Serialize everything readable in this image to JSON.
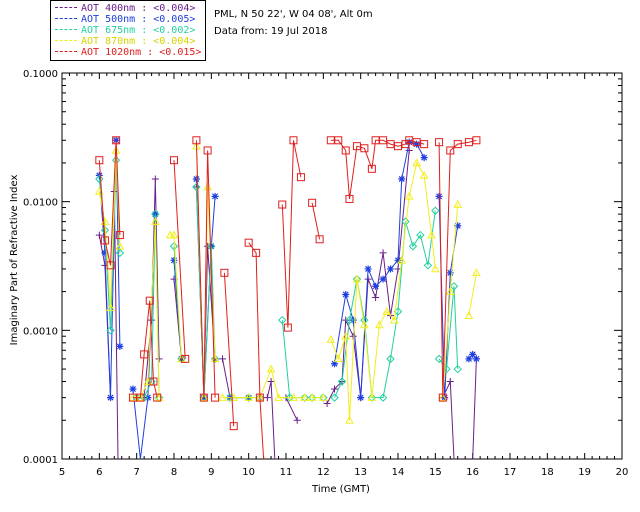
{
  "header": {
    "site_line": "PML, N 50 22', W 04 08', Alt 0m",
    "date_line": "Data from: 19 Jul 2018"
  },
  "chart_data": {
    "type": "line",
    "title": "",
    "xlabel": "Time (GMT)",
    "ylabel": "Imaginary Part of Refractive Index",
    "xlim": [
      5,
      20
    ],
    "ylim": [
      0.0001,
      0.1
    ],
    "yscale": "log",
    "grid": false,
    "legend_position": "top-left",
    "x_ticks": [
      "5",
      "6",
      "7",
      "8",
      "9",
      "10",
      "11",
      "12",
      "13",
      "14",
      "15",
      "16",
      "17",
      "18",
      "19",
      "20"
    ],
    "y_ticks": [
      "0.0001",
      "0.0010",
      "0.0100",
      "0.1000"
    ],
    "series": [
      {
        "name": "AOT  400nm : <0.004>",
        "color": "#6a1f8a",
        "marker": "plus",
        "segments": [
          [
            [
              6.0,
              0.0055
            ],
            [
              6.15,
              0.0032
            ],
            [
              6.3,
              0.0003
            ]
          ],
          [
            [
              6.4,
              0.012
            ],
            [
              6.5,
              0.0001
            ]
          ],
          [
            [
              7.0,
              0.0003
            ],
            [
              7.2,
              0.0003
            ],
            [
              7.4,
              0.0012
            ],
            [
              7.5,
              0.015
            ],
            [
              7.6,
              0.0006
            ]
          ],
          [
            [
              8.0,
              0.0025
            ],
            [
              8.2,
              0.0006
            ]
          ],
          [
            [
              8.6,
              0.013
            ],
            [
              8.8,
              0.0003
            ],
            [
              8.9,
              0.0045
            ],
            [
              9.1,
              0.0006
            ]
          ],
          [
            [
              9.3,
              0.0006
            ],
            [
              9.5,
              0.0003
            ]
          ],
          [
            [
              10.5,
              0.0003
            ],
            [
              10.6,
              0.0004
            ],
            [
              10.7,
              0.0001
            ]
          ],
          [
            [
              11.0,
              0.0003
            ],
            [
              11.3,
              0.0002
            ]
          ],
          [
            [
              12.1,
              0.00027
            ],
            [
              12.3,
              0.00035
            ],
            [
              12.5,
              0.0004
            ],
            [
              12.6,
              0.0012
            ],
            [
              12.8,
              0.0009
            ],
            [
              13.0,
              0.0003
            ],
            [
              13.2,
              0.0025
            ],
            [
              13.4,
              0.0018
            ],
            [
              13.6,
              0.004
            ],
            [
              13.8,
              0.0013
            ],
            [
              14.0,
              0.003
            ],
            [
              14.3,
              0.025
            ]
          ],
          [
            [
              15.2,
              0.0003
            ],
            [
              15.4,
              0.0004
            ],
            [
              15.5,
              0.0001
            ]
          ],
          [
            [
              16.0,
              0.0001
            ],
            [
              16.1,
              0.0006
            ]
          ]
        ]
      },
      {
        "name": "AOT  500nm : <0.005>",
        "color": "#1f3fe0",
        "marker": "asterisk",
        "segments": [
          [
            [
              6.0,
              0.016
            ],
            [
              6.15,
              0.004
            ],
            [
              6.3,
              0.0003
            ],
            [
              6.45,
              0.03
            ],
            [
              6.55,
              0.00075
            ]
          ],
          [
            [
              6.9,
              0.00035
            ],
            [
              7.1,
              0.0001
            ],
            [
              7.3,
              0.0003
            ],
            [
              7.5,
              0.008
            ]
          ],
          [
            [
              8.0,
              0.0035
            ],
            [
              8.2,
              0.0006
            ]
          ],
          [
            [
              8.6,
              0.015
            ],
            [
              8.8,
              0.0003
            ],
            [
              9.0,
              0.0045
            ],
            [
              9.1,
              0.011
            ]
          ],
          [
            [
              9.5,
              0.0003
            ],
            [
              10.0,
              0.0003
            ]
          ],
          [
            [
              12.3,
              0.00055
            ],
            [
              12.6,
              0.0019
            ],
            [
              12.8,
              0.0012
            ],
            [
              13.0,
              0.0003
            ],
            [
              13.2,
              0.003
            ],
            [
              13.4,
              0.0022
            ],
            [
              13.6,
              0.0025
            ],
            [
              13.8,
              0.003
            ],
            [
              14.0,
              0.0035
            ],
            [
              14.1,
              0.015
            ],
            [
              14.3,
              0.029
            ],
            [
              14.5,
              0.028
            ],
            [
              14.7,
              0.022
            ]
          ],
          [
            [
              15.1,
              0.011
            ],
            [
              15.25,
              0.0003
            ],
            [
              15.4,
              0.0028
            ],
            [
              15.6,
              0.0065
            ]
          ],
          [
            [
              15.9,
              0.0006
            ],
            [
              16.0,
              0.00065
            ],
            [
              16.1,
              0.0006
            ]
          ]
        ]
      },
      {
        "name": "AOT  675nm : <0.002>",
        "color": "#22d0a0",
        "marker": "diamond",
        "segments": [
          [
            [
              6.0,
              0.015
            ],
            [
              6.15,
              0.006
            ],
            [
              6.3,
              0.001
            ],
            [
              6.45,
              0.021
            ],
            [
              6.55,
              0.004
            ]
          ],
          [
            [
              7.0,
              0.0003
            ],
            [
              7.2,
              0.0003
            ],
            [
              7.4,
              0.0004
            ],
            [
              7.5,
              0.008
            ],
            [
              7.6,
              0.0003
            ]
          ],
          [
            [
              8.0,
              0.0045
            ],
            [
              8.2,
              0.0006
            ]
          ],
          [
            [
              8.6,
              0.013
            ],
            [
              8.8,
              0.0003
            ],
            [
              9.0,
              0.0045
            ],
            [
              9.1,
              0.0006
            ]
          ],
          [
            [
              9.5,
              0.0003
            ],
            [
              10.0,
              0.0003
            ],
            [
              10.3,
              0.0003
            ]
          ],
          [
            [
              10.9,
              0.0012
            ],
            [
              11.1,
              0.0003
            ],
            [
              11.5,
              0.0003
            ]
          ],
          [
            [
              11.7,
              0.0003
            ],
            [
              12.0,
              0.0003
            ]
          ],
          [
            [
              12.3,
              0.0003
            ],
            [
              12.5,
              0.0004
            ],
            [
              12.7,
              0.0012
            ],
            [
              12.9,
              0.0025
            ],
            [
              13.1,
              0.0012
            ],
            [
              13.3,
              0.0003
            ],
            [
              13.6,
              0.0003
            ],
            [
              13.8,
              0.0006
            ],
            [
              14.0,
              0.0014
            ],
            [
              14.2,
              0.007
            ],
            [
              14.4,
              0.0045
            ],
            [
              14.6,
              0.0055
            ],
            [
              14.8,
              0.0032
            ],
            [
              15.0,
              0.0085
            ]
          ],
          [
            [
              15.1,
              0.0006
            ],
            [
              15.3,
              0.0005
            ],
            [
              15.5,
              0.0022
            ],
            [
              15.6,
              0.0005
            ]
          ]
        ]
      },
      {
        "name": "AOT  870nm : <0.004>",
        "color": "#f2ee1c",
        "marker": "triangle",
        "segments": [
          [
            [
              6.0,
              0.012
            ],
            [
              6.15,
              0.007
            ],
            [
              6.3,
              0.0015
            ],
            [
              6.45,
              0.025
            ],
            [
              6.55,
              0.0045
            ]
          ],
          [
            [
              6.9,
              0.0003
            ],
            [
              7.1,
              0.0003
            ],
            [
              7.3,
              0.0004
            ],
            [
              7.5,
              0.007
            ],
            [
              7.6,
              0.0003
            ]
          ],
          [
            [
              7.9,
              0.0055
            ],
            [
              8.0,
              0.0055
            ],
            [
              8.2,
              0.0006
            ]
          ],
          [
            [
              8.6,
              0.027
            ],
            [
              8.8,
              0.0003
            ],
            [
              8.9,
              0.013
            ],
            [
              9.1,
              0.0006
            ]
          ],
          [
            [
              9.3,
              0.0003
            ],
            [
              9.6,
              0.0003
            ],
            [
              10.0,
              0.0003
            ],
            [
              10.3,
              0.0003
            ],
            [
              10.6,
              0.0005
            ],
            [
              10.8,
              0.0003
            ],
            [
              11.2,
              0.0003
            ],
            [
              11.5,
              0.0003
            ]
          ],
          [
            [
              11.7,
              0.0003
            ],
            [
              12.0,
              0.0003
            ]
          ],
          [
            [
              12.2,
              0.00085
            ],
            [
              12.4,
              0.0006
            ],
            [
              12.6,
              0.0009
            ],
            [
              12.7,
              0.0002
            ],
            [
              12.9,
              0.0025
            ],
            [
              13.1,
              0.0011
            ],
            [
              13.3,
              0.0003
            ],
            [
              13.5,
              0.0011
            ],
            [
              13.7,
              0.0014
            ],
            [
              13.9,
              0.0012
            ],
            [
              14.1,
              0.0035
            ],
            [
              14.3,
              0.011
            ],
            [
              14.5,
              0.02
            ],
            [
              14.7,
              0.016
            ],
            [
              14.9,
              0.0055
            ],
            [
              15.0,
              0.003
            ]
          ],
          [
            [
              15.2,
              0.0003
            ],
            [
              15.4,
              0.002
            ],
            [
              15.6,
              0.0095
            ]
          ],
          [
            [
              15.9,
              0.0013
            ],
            [
              16.1,
              0.0028
            ]
          ]
        ]
      },
      {
        "name": "AOT 1020nm : <0.015>",
        "color": "#e01e1e",
        "marker": "square",
        "segments": [
          [
            [
              6.0,
              0.021
            ],
            [
              6.15,
              0.005
            ],
            [
              6.3,
              0.0032
            ],
            [
              6.45,
              0.03
            ],
            [
              6.55,
              0.0055
            ]
          ],
          [
            [
              6.9,
              0.0003
            ],
            [
              7.1,
              0.0003
            ],
            [
              7.2,
              0.00065
            ],
            [
              7.35,
              0.0017
            ],
            [
              7.45,
              0.0004
            ],
            [
              7.55,
              0.0003
            ]
          ],
          [
            [
              8.0,
              0.021
            ],
            [
              8.3,
              0.0006
            ]
          ],
          [
            [
              8.6,
              0.03
            ],
            [
              8.8,
              0.0003
            ],
            [
              8.9,
              0.025
            ],
            [
              9.1,
              0.0003
            ]
          ],
          [
            [
              9.35,
              0.0028
            ],
            [
              9.6,
              0.00018
            ]
          ],
          [
            [
              10.0,
              0.0048
            ],
            [
              10.2,
              0.004
            ],
            [
              10.3,
              0.0003
            ],
            [
              10.4,
              0.0001
            ]
          ],
          [
            [
              10.9,
              0.0095
            ],
            [
              11.05,
              0.00105
            ],
            [
              11.2,
              0.03
            ],
            [
              11.4,
              0.0155
            ]
          ],
          [
            [
              11.7,
              0.0098
            ],
            [
              11.9,
              0.0051
            ]
          ],
          [
            [
              12.2,
              0.03
            ],
            [
              12.4,
              0.03
            ],
            [
              12.6,
              0.025
            ],
            [
              12.7,
              0.0105
            ],
            [
              12.9,
              0.027
            ],
            [
              13.1,
              0.026
            ],
            [
              13.3,
              0.018
            ],
            [
              13.4,
              0.03
            ],
            [
              13.6,
              0.03
            ],
            [
              13.8,
              0.028
            ],
            [
              14.0,
              0.027
            ],
            [
              14.2,
              0.028
            ],
            [
              14.3,
              0.03
            ],
            [
              14.5,
              0.029
            ],
            [
              14.7,
              0.028
            ]
          ],
          [
            [
              15.1,
              0.029
            ],
            [
              15.2,
              0.0003
            ],
            [
              15.4,
              0.025
            ],
            [
              15.6,
              0.028
            ],
            [
              15.9,
              0.029
            ],
            [
              16.1,
              0.03
            ]
          ]
        ]
      }
    ]
  }
}
